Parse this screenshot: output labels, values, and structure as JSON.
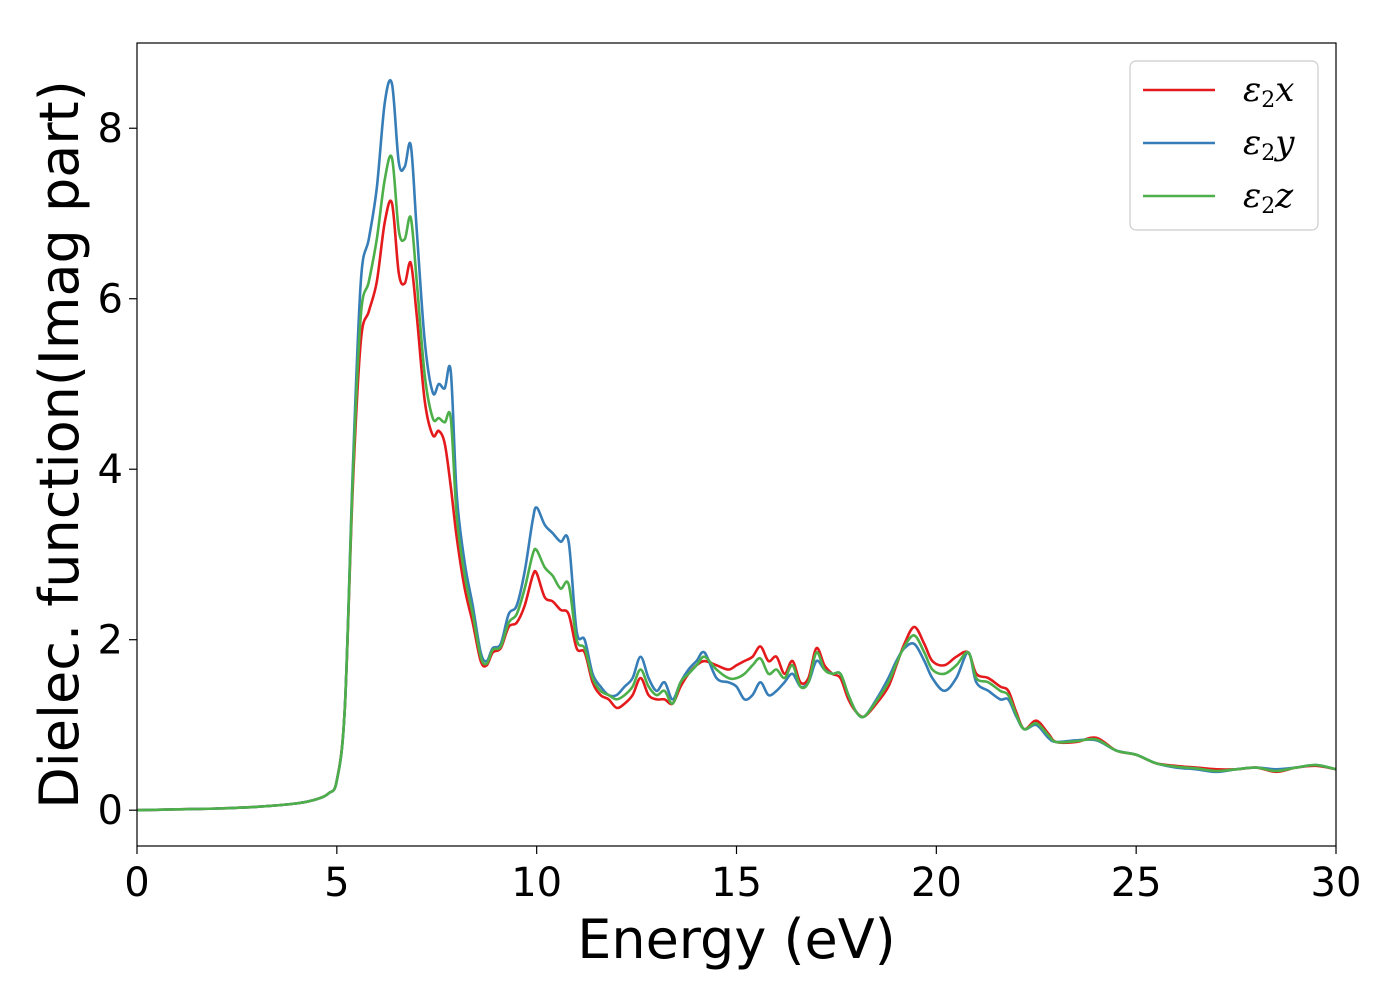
{
  "chart_data": {
    "type": "line",
    "title": "",
    "xlabel": "Energy (eV)",
    "ylabel": "Dielec. function(Imag part)",
    "xlim": [
      0,
      30
    ],
    "ylim": [
      -0.42,
      9.0
    ],
    "xticks": [
      0,
      5,
      10,
      15,
      20,
      25,
      30
    ],
    "yticks": [
      0,
      2,
      4,
      6,
      8
    ],
    "grid": false,
    "legend_position": "top-right",
    "series": [
      {
        "name": "ε2x",
        "legend_base": "ε",
        "legend_sub": "2",
        "legend_var": "x",
        "color": "#e41a1c",
        "x": [
          0,
          1,
          2,
          3,
          4,
          4.5,
          4.8,
          5.0,
          5.2,
          5.4,
          5.6,
          5.8,
          6.0,
          6.2,
          6.38,
          6.55,
          6.7,
          6.85,
          7.0,
          7.2,
          7.4,
          7.55,
          7.7,
          7.85,
          8.0,
          8.2,
          8.4,
          8.6,
          8.75,
          8.9,
          9.1,
          9.3,
          9.5,
          9.7,
          9.9,
          10.0,
          10.2,
          10.4,
          10.6,
          10.8,
          11.0,
          11.2,
          11.4,
          11.6,
          11.8,
          12.0,
          12.2,
          12.4,
          12.6,
          12.8,
          13.0,
          13.2,
          13.4,
          13.6,
          13.8,
          14.0,
          14.2,
          14.5,
          14.8,
          15.0,
          15.2,
          15.4,
          15.6,
          15.8,
          16.0,
          16.2,
          16.4,
          16.6,
          16.8,
          17.0,
          17.2,
          17.4,
          17.6,
          17.8,
          18.0,
          18.2,
          18.5,
          18.8,
          19.0,
          19.2,
          19.45,
          19.7,
          19.9,
          20.2,
          20.5,
          20.8,
          21.0,
          21.3,
          21.6,
          21.8,
          22.0,
          22.2,
          22.5,
          22.8,
          23.0,
          23.5,
          24.0,
          24.5,
          25.0,
          25.5,
          26.0,
          26.5,
          27.0,
          27.5,
          28.0,
          28.5,
          29.0,
          29.5,
          30
        ],
        "y": [
          0.0,
          0.01,
          0.02,
          0.04,
          0.08,
          0.13,
          0.2,
          0.35,
          1.2,
          3.8,
          5.5,
          5.85,
          6.2,
          6.9,
          7.12,
          6.3,
          6.18,
          6.42,
          5.8,
          4.8,
          4.4,
          4.45,
          4.3,
          3.8,
          3.2,
          2.6,
          2.2,
          1.75,
          1.7,
          1.85,
          1.9,
          2.15,
          2.2,
          2.4,
          2.75,
          2.78,
          2.5,
          2.45,
          2.35,
          2.3,
          1.9,
          1.85,
          1.5,
          1.35,
          1.3,
          1.2,
          1.25,
          1.35,
          1.55,
          1.35,
          1.3,
          1.3,
          1.25,
          1.45,
          1.6,
          1.7,
          1.75,
          1.7,
          1.65,
          1.7,
          1.75,
          1.8,
          1.92,
          1.75,
          1.8,
          1.6,
          1.75,
          1.5,
          1.55,
          1.9,
          1.7,
          1.6,
          1.55,
          1.3,
          1.15,
          1.1,
          1.25,
          1.45,
          1.7,
          1.95,
          2.15,
          1.95,
          1.75,
          1.7,
          1.8,
          1.85,
          1.6,
          1.55,
          1.45,
          1.4,
          1.15,
          0.95,
          1.05,
          0.9,
          0.8,
          0.8,
          0.85,
          0.7,
          0.65,
          0.55,
          0.52,
          0.5,
          0.48,
          0.48,
          0.5,
          0.45,
          0.5,
          0.52,
          0.48
        ]
      },
      {
        "name": "ε2y",
        "legend_base": "ε",
        "legend_sub": "2",
        "legend_var": "y",
        "color": "#377eb8",
        "x": [
          0,
          1,
          2,
          3,
          4,
          4.5,
          4.8,
          5.0,
          5.2,
          5.4,
          5.6,
          5.8,
          6.0,
          6.2,
          6.38,
          6.55,
          6.7,
          6.85,
          7.0,
          7.2,
          7.4,
          7.55,
          7.7,
          7.85,
          8.0,
          8.2,
          8.4,
          8.6,
          8.75,
          8.9,
          9.1,
          9.3,
          9.5,
          9.7,
          9.9,
          10.0,
          10.2,
          10.4,
          10.6,
          10.8,
          11.0,
          11.2,
          11.4,
          11.6,
          11.8,
          12.0,
          12.2,
          12.4,
          12.6,
          12.8,
          13.0,
          13.2,
          13.4,
          13.6,
          13.8,
          14.0,
          14.2,
          14.5,
          14.8,
          15.0,
          15.2,
          15.4,
          15.6,
          15.8,
          16.0,
          16.2,
          16.4,
          16.6,
          16.8,
          17.0,
          17.2,
          17.4,
          17.6,
          17.8,
          18.0,
          18.2,
          18.5,
          18.8,
          19.0,
          19.2,
          19.45,
          19.7,
          19.9,
          20.2,
          20.5,
          20.8,
          21.0,
          21.3,
          21.6,
          21.8,
          22.0,
          22.2,
          22.5,
          22.8,
          23.0,
          23.5,
          24.0,
          24.5,
          25.0,
          25.5,
          26.0,
          26.5,
          27.0,
          27.5,
          28.0,
          28.5,
          29.0,
          29.5,
          30
        ],
        "y": [
          0.0,
          0.01,
          0.02,
          0.04,
          0.08,
          0.13,
          0.2,
          0.35,
          1.2,
          4.0,
          6.2,
          6.7,
          7.3,
          8.3,
          8.52,
          7.6,
          7.55,
          7.8,
          6.8,
          5.5,
          4.9,
          5.0,
          4.95,
          5.15,
          3.7,
          2.9,
          2.4,
          1.85,
          1.75,
          1.9,
          1.95,
          2.3,
          2.4,
          2.8,
          3.4,
          3.55,
          3.35,
          3.25,
          3.15,
          3.15,
          2.1,
          2.0,
          1.6,
          1.45,
          1.35,
          1.35,
          1.45,
          1.55,
          1.8,
          1.55,
          1.4,
          1.5,
          1.3,
          1.5,
          1.65,
          1.75,
          1.85,
          1.55,
          1.5,
          1.45,
          1.3,
          1.35,
          1.5,
          1.35,
          1.4,
          1.5,
          1.6,
          1.45,
          1.5,
          1.75,
          1.65,
          1.6,
          1.6,
          1.35,
          1.15,
          1.1,
          1.3,
          1.55,
          1.75,
          1.9,
          1.95,
          1.75,
          1.55,
          1.4,
          1.55,
          1.85,
          1.5,
          1.4,
          1.3,
          1.3,
          1.1,
          0.95,
          1.0,
          0.85,
          0.8,
          0.82,
          0.82,
          0.7,
          0.65,
          0.55,
          0.5,
          0.48,
          0.45,
          0.48,
          0.5,
          0.48,
          0.5,
          0.53,
          0.48
        ]
      },
      {
        "name": "ε2z",
        "legend_base": "ε",
        "legend_sub": "2",
        "legend_var": "z",
        "color": "#4daf4a",
        "x": [
          0,
          1,
          2,
          3,
          4,
          4.5,
          4.8,
          5.0,
          5.2,
          5.4,
          5.6,
          5.8,
          6.0,
          6.2,
          6.38,
          6.55,
          6.7,
          6.85,
          7.0,
          7.2,
          7.4,
          7.55,
          7.7,
          7.85,
          8.0,
          8.2,
          8.4,
          8.6,
          8.75,
          8.9,
          9.1,
          9.3,
          9.5,
          9.7,
          9.9,
          10.0,
          10.2,
          10.4,
          10.6,
          10.8,
          11.0,
          11.2,
          11.4,
          11.6,
          11.8,
          12.0,
          12.2,
          12.4,
          12.6,
          12.8,
          13.0,
          13.2,
          13.4,
          13.6,
          13.8,
          14.0,
          14.2,
          14.5,
          14.8,
          15.0,
          15.2,
          15.4,
          15.6,
          15.8,
          16.0,
          16.2,
          16.4,
          16.6,
          16.8,
          17.0,
          17.2,
          17.4,
          17.6,
          17.8,
          18.0,
          18.2,
          18.5,
          18.8,
          19.0,
          19.2,
          19.45,
          19.7,
          19.9,
          20.2,
          20.5,
          20.8,
          21.0,
          21.3,
          21.6,
          21.8,
          22.0,
          22.2,
          22.5,
          22.8,
          23.0,
          23.5,
          24.0,
          24.5,
          25.0,
          25.5,
          26.0,
          26.5,
          27.0,
          27.5,
          28.0,
          28.5,
          29.0,
          29.5,
          30
        ],
        "y": [
          0.0,
          0.01,
          0.02,
          0.04,
          0.08,
          0.13,
          0.2,
          0.35,
          1.2,
          3.9,
          5.8,
          6.2,
          6.7,
          7.4,
          7.65,
          6.8,
          6.7,
          6.95,
          6.2,
          5.1,
          4.6,
          4.6,
          4.55,
          4.6,
          3.45,
          2.75,
          2.3,
          1.8,
          1.72,
          1.88,
          1.92,
          2.2,
          2.3,
          2.6,
          3.0,
          3.05,
          2.85,
          2.75,
          2.6,
          2.65,
          2.0,
          1.9,
          1.55,
          1.4,
          1.35,
          1.3,
          1.35,
          1.45,
          1.65,
          1.45,
          1.35,
          1.4,
          1.25,
          1.5,
          1.6,
          1.7,
          1.8,
          1.65,
          1.55,
          1.55,
          1.6,
          1.7,
          1.78,
          1.6,
          1.65,
          1.55,
          1.7,
          1.45,
          1.5,
          1.85,
          1.65,
          1.6,
          1.6,
          1.35,
          1.15,
          1.1,
          1.28,
          1.5,
          1.72,
          1.92,
          2.05,
          1.85,
          1.65,
          1.6,
          1.7,
          1.85,
          1.55,
          1.5,
          1.4,
          1.35,
          1.12,
          0.95,
          1.02,
          0.88,
          0.8,
          0.81,
          0.83,
          0.7,
          0.65,
          0.55,
          0.51,
          0.49,
          0.46,
          0.48,
          0.5,
          0.46,
          0.5,
          0.53,
          0.48
        ]
      }
    ]
  }
}
